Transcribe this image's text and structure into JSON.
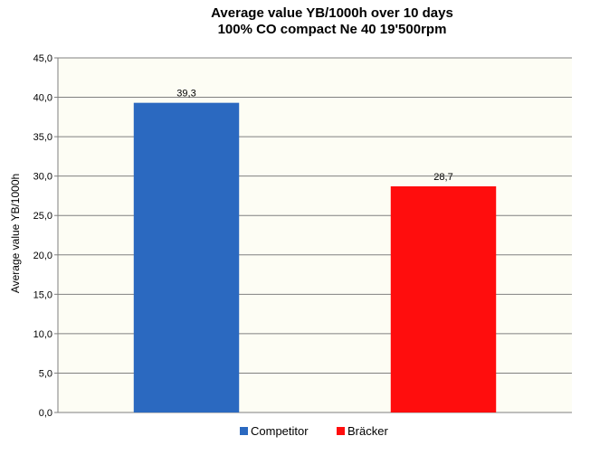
{
  "chart_data": {
    "type": "bar",
    "title": [
      "Average value YB/1000h over 10 days",
      "100% CO compact Ne 40 19'500rpm"
    ],
    "ylabel": "Average value YB/1000h",
    "xlabel": "",
    "ylim": [
      0,
      45
    ],
    "ytick_step": 5,
    "ytick_labels": [
      "0,0",
      "5,0",
      "10,0",
      "15,0",
      "20,0",
      "25,0",
      "30,0",
      "35,0",
      "40,0",
      "45,0"
    ],
    "grid": true,
    "legend_position": "bottom",
    "plot_background": "#fdfdf4",
    "series": [
      {
        "name": "Competitor",
        "value": 39.3,
        "label": "39,3",
        "color": "#2b69c0"
      },
      {
        "name": "Bräcker",
        "value": 28.7,
        "label": "28,7",
        "color": "#ff0d0d"
      }
    ]
  }
}
